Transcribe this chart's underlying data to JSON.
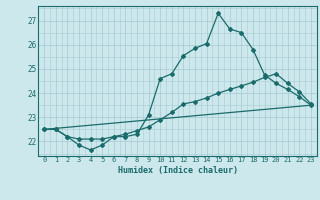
{
  "xlabel": "Humidex (Indice chaleur)",
  "background_color": "#cde8ec",
  "grid_color": "#aacdd4",
  "line_color": "#1a6b6b",
  "xlim": [
    -0.5,
    23.5
  ],
  "ylim": [
    21.4,
    27.6
  ],
  "xticks": [
    0,
    1,
    2,
    3,
    4,
    5,
    6,
    7,
    8,
    9,
    10,
    11,
    12,
    13,
    14,
    15,
    16,
    17,
    18,
    19,
    20,
    21,
    22,
    23
  ],
  "yticks": [
    22,
    23,
    24,
    25,
    26,
    27
  ],
  "line1_x": [
    0,
    1,
    2,
    3,
    4,
    5,
    6,
    7,
    8,
    9,
    10,
    11,
    12,
    13,
    14,
    15,
    16,
    17,
    18,
    19,
    20,
    21,
    22,
    23
  ],
  "line1_y": [
    22.5,
    22.5,
    22.2,
    21.85,
    21.65,
    21.85,
    22.2,
    22.2,
    22.3,
    23.1,
    24.6,
    24.8,
    25.55,
    25.85,
    26.05,
    27.3,
    26.65,
    26.5,
    25.8,
    24.75,
    24.4,
    24.15,
    23.85,
    23.5
  ],
  "line2_x": [
    0,
    1,
    2,
    3,
    4,
    5,
    6,
    7,
    8,
    9,
    10,
    11,
    12,
    13,
    14,
    15,
    16,
    17,
    18,
    19,
    20,
    21,
    22,
    23
  ],
  "line2_y": [
    22.5,
    22.5,
    22.2,
    22.1,
    22.1,
    22.1,
    22.2,
    22.3,
    22.45,
    22.6,
    22.9,
    23.2,
    23.55,
    23.65,
    23.8,
    24.0,
    24.15,
    24.3,
    24.45,
    24.65,
    24.8,
    24.4,
    24.05,
    23.55
  ],
  "line3_x": [
    0,
    23
  ],
  "line3_y": [
    22.5,
    23.5
  ]
}
